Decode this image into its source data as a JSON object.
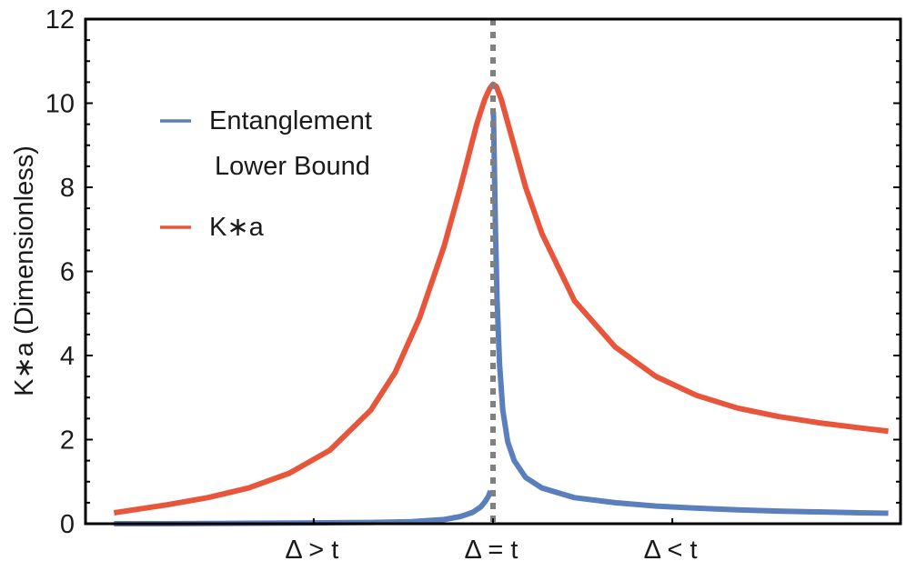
{
  "chart_data": {
    "type": "line",
    "title": "",
    "xlabel": "",
    "ylabel": "K∗a (Dimensionless)",
    "ylim": [
      0,
      12
    ],
    "yticks": [
      0,
      2,
      4,
      6,
      8,
      10,
      12
    ],
    "x_tick_labels": [
      {
        "label": "Δ > t",
        "pos": 0.28
      },
      {
        "label": "Δ = t",
        "pos": 0.5
      },
      {
        "label": "Δ < t",
        "pos": 0.72
      }
    ],
    "xlim": [
      0,
      1
    ],
    "grid": false,
    "legend_position": "upper-left inside",
    "critical_line": {
      "x": 0.5,
      "style": "dotted",
      "color": "#808080",
      "label": "Δ = t"
    },
    "series": [
      {
        "name": "Entanglement Lower Bound",
        "color": "#5b7fbd",
        "x": [
          0.035,
          0.1,
          0.2,
          0.28,
          0.35,
          0.4,
          0.44,
          0.46,
          0.475,
          0.485,
          0.49,
          0.494,
          0.497,
          0.5005,
          0.503,
          0.505,
          0.508,
          0.512,
          0.518,
          0.526,
          0.54,
          0.56,
          0.6,
          0.65,
          0.7,
          0.75,
          0.8,
          0.85,
          0.9,
          0.95,
          0.985
        ],
        "values": [
          0.0,
          0.0,
          0.01,
          0.02,
          0.03,
          0.05,
          0.1,
          0.17,
          0.27,
          0.4,
          0.52,
          0.64,
          0.78,
          9.8,
          7.0,
          5.3,
          3.8,
          2.7,
          1.95,
          1.5,
          1.1,
          0.85,
          0.62,
          0.5,
          0.42,
          0.37,
          0.33,
          0.3,
          0.28,
          0.26,
          0.25
        ]
      },
      {
        "name": "K∗a",
        "color": "#e8553a",
        "x": [
          0.035,
          0.1,
          0.15,
          0.2,
          0.25,
          0.3,
          0.35,
          0.38,
          0.41,
          0.44,
          0.46,
          0.48,
          0.49,
          0.496,
          0.5,
          0.504,
          0.51,
          0.52,
          0.54,
          0.56,
          0.6,
          0.65,
          0.7,
          0.75,
          0.8,
          0.85,
          0.9,
          0.95,
          0.985
        ],
        "values": [
          0.26,
          0.45,
          0.62,
          0.85,
          1.2,
          1.75,
          2.7,
          3.6,
          4.9,
          6.6,
          8.0,
          9.5,
          10.1,
          10.35,
          10.45,
          10.4,
          10.1,
          9.4,
          8.0,
          6.9,
          5.3,
          4.2,
          3.5,
          3.05,
          2.75,
          2.55,
          2.4,
          2.28,
          2.2
        ]
      }
    ]
  },
  "legend": {
    "items": [
      {
        "label_line1": "Entanglement",
        "label_line2": "Lower Bound",
        "color": "#5b7fbd"
      },
      {
        "label_line1": "K∗a",
        "label_line2": "",
        "color": "#e8553a"
      }
    ]
  },
  "axes": {
    "ylabel": "K∗a (Dimensionless)",
    "ytick_labels": [
      "0",
      "2",
      "4",
      "6",
      "8",
      "10",
      "12"
    ],
    "xtick_labels": [
      "Δ > t",
      "Δ = t",
      "Δ < t"
    ]
  }
}
